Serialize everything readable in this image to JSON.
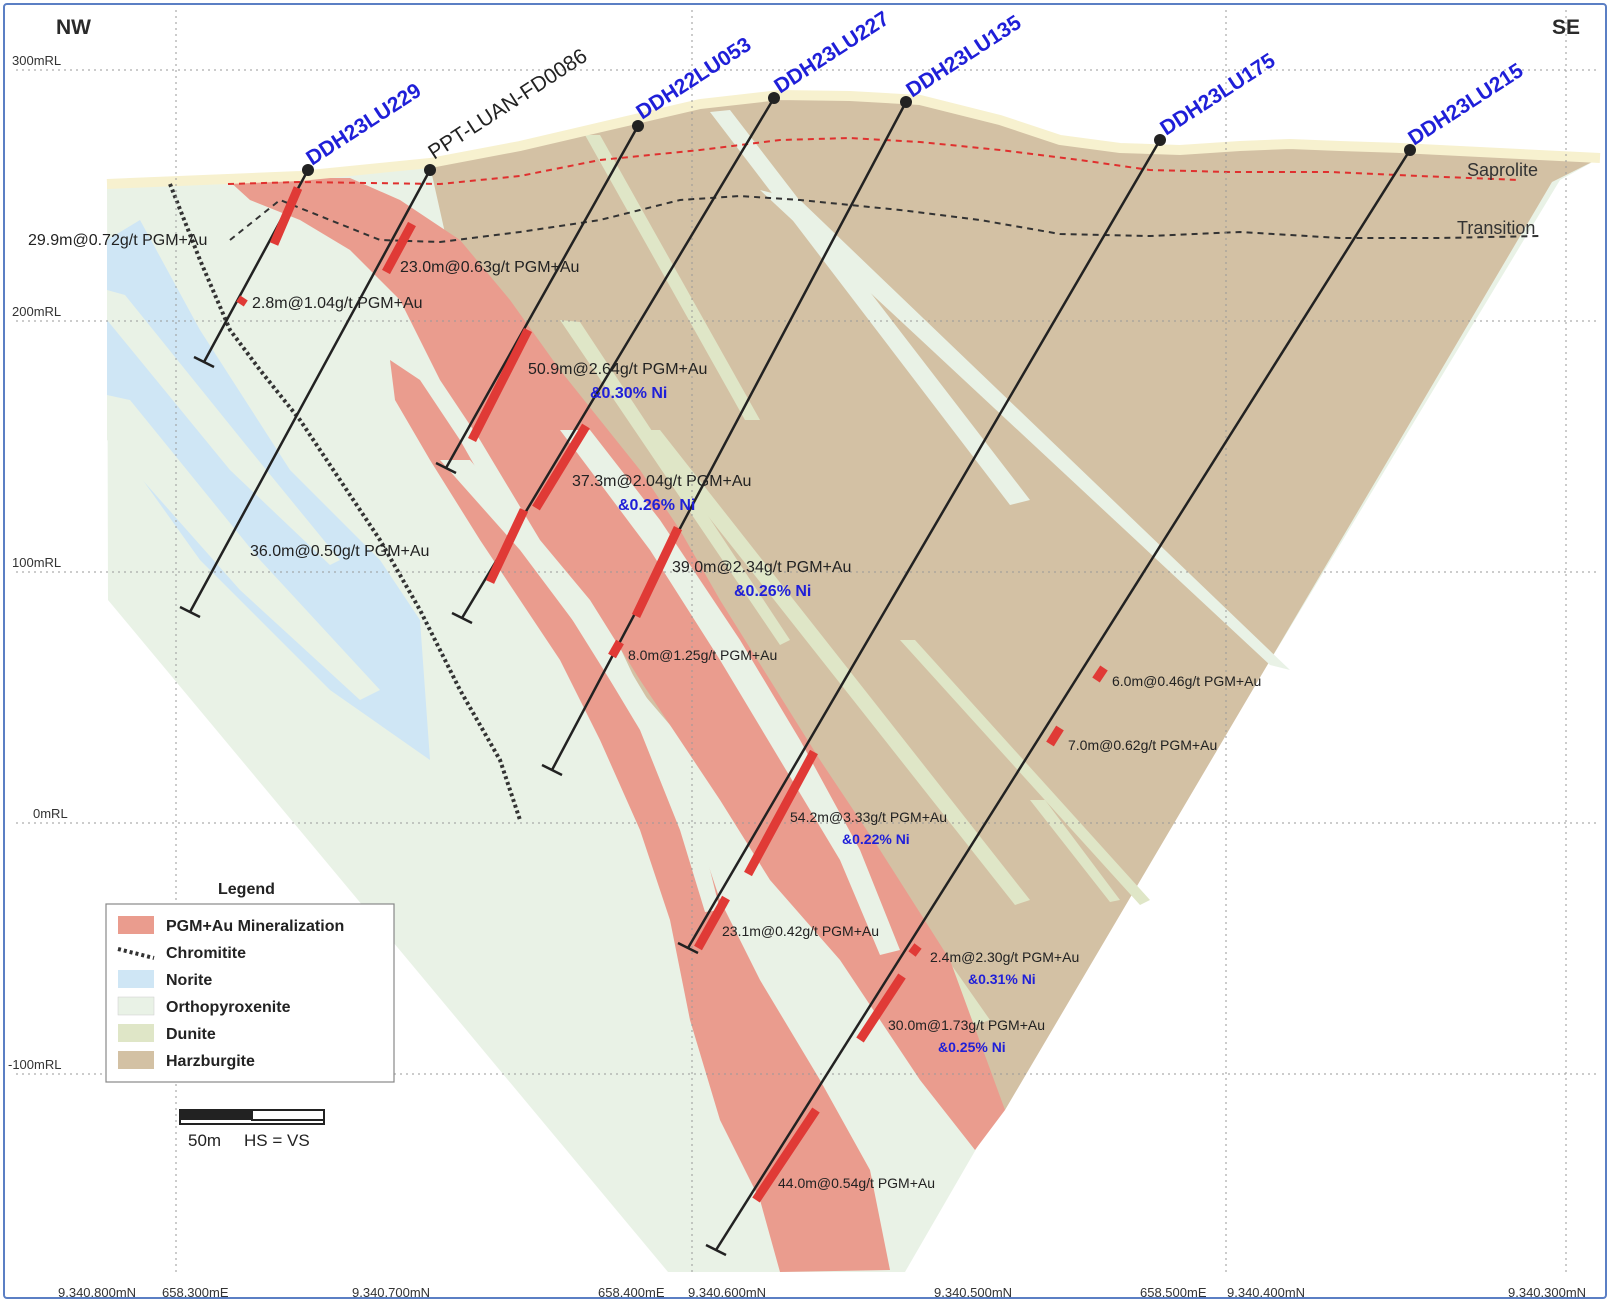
{
  "directions": {
    "left": "NW",
    "right": "SE"
  },
  "elevation_labels": [
    "300mRL",
    "200mRL",
    "100mRL",
    "0mRL",
    "-100mRL"
  ],
  "bottom_labels": [
    "9.340.800mN",
    "658.300mE",
    "9.340.700mN",
    "658.400mE",
    "9.340.600mN",
    "9.340.500mN",
    "658.500mE",
    "9.340.400mN",
    "9.340.300mN"
  ],
  "layer_labels": {
    "saprolite": "Saprolite",
    "transition": "Transition"
  },
  "drillholes": [
    "DDH23LU229",
    "PPT-LUAN-FD0086",
    "DDH22LU053",
    "DDH23LU227",
    "DDH23LU135",
    "DDH23LU175",
    "DDH23LU215"
  ],
  "intercepts": [
    {
      "text": "29.9m@0.72g/t PGM+Au",
      "ni": ""
    },
    {
      "text": "23.0m@0.63g/t PGM+Au",
      "ni": ""
    },
    {
      "text": "2.8m@1.04g/t PGM+Au",
      "ni": ""
    },
    {
      "text": "50.9m@2.64g/t PGM+Au",
      "ni": "&0.30% Ni"
    },
    {
      "text": "37.3m@2.04g/t PGM+Au",
      "ni": "&0.26% Ni"
    },
    {
      "text": "36.0m@0.50g/t PGM+Au",
      "ni": ""
    },
    {
      "text": "39.0m@2.34g/t PGM+Au",
      "ni": "&0.26% Ni"
    },
    {
      "text": "8.0m@1.25g/t PGM+Au",
      "ni": ""
    },
    {
      "text": "6.0m@0.46g/t PGM+Au",
      "ni": ""
    },
    {
      "text": "7.0m@0.62g/t PGM+Au",
      "ni": ""
    },
    {
      "text": "54.2m@3.33g/t PGM+Au",
      "ni": "&0.22% Ni"
    },
    {
      "text": "23.1m@0.42g/t PGM+Au",
      "ni": ""
    },
    {
      "text": "2.4m@2.30g/t PGM+Au",
      "ni": "&0.31% Ni"
    },
    {
      "text": "30.0m@1.73g/t PGM+Au",
      "ni": "&0.25% Ni"
    },
    {
      "text": "44.0m@0.54g/t PGM+Au",
      "ni": ""
    }
  ],
  "legend": {
    "title": "Legend",
    "items": [
      {
        "label": "PGM+Au Mineralization",
        "color": "#ea9c8e"
      },
      {
        "label": "Chromitite",
        "color": "#333333"
      },
      {
        "label": "Norite",
        "color": "#cfe6f5"
      },
      {
        "label": "Orthopyroxenite",
        "color": "#e9f2e6"
      },
      {
        "label": "Dunite",
        "color": "#dfe6c7"
      },
      {
        "label": "Harzburgite",
        "color": "#d3c1a4"
      }
    ]
  },
  "scale_bar": {
    "label": "50m",
    "note": "HS = VS"
  },
  "colors": {
    "mineralization": "#ea9c8e",
    "intercept": "#e03a36",
    "norite": "#cfe6f5",
    "orthopyroxenite": "#e9f2e6",
    "dunite": "#dfe6c7",
    "harzburgite": "#d3c1a4",
    "surface": "#f7f1cf",
    "saprolite_line": "#e0302e",
    "hole_label": "#1f1fd8"
  }
}
